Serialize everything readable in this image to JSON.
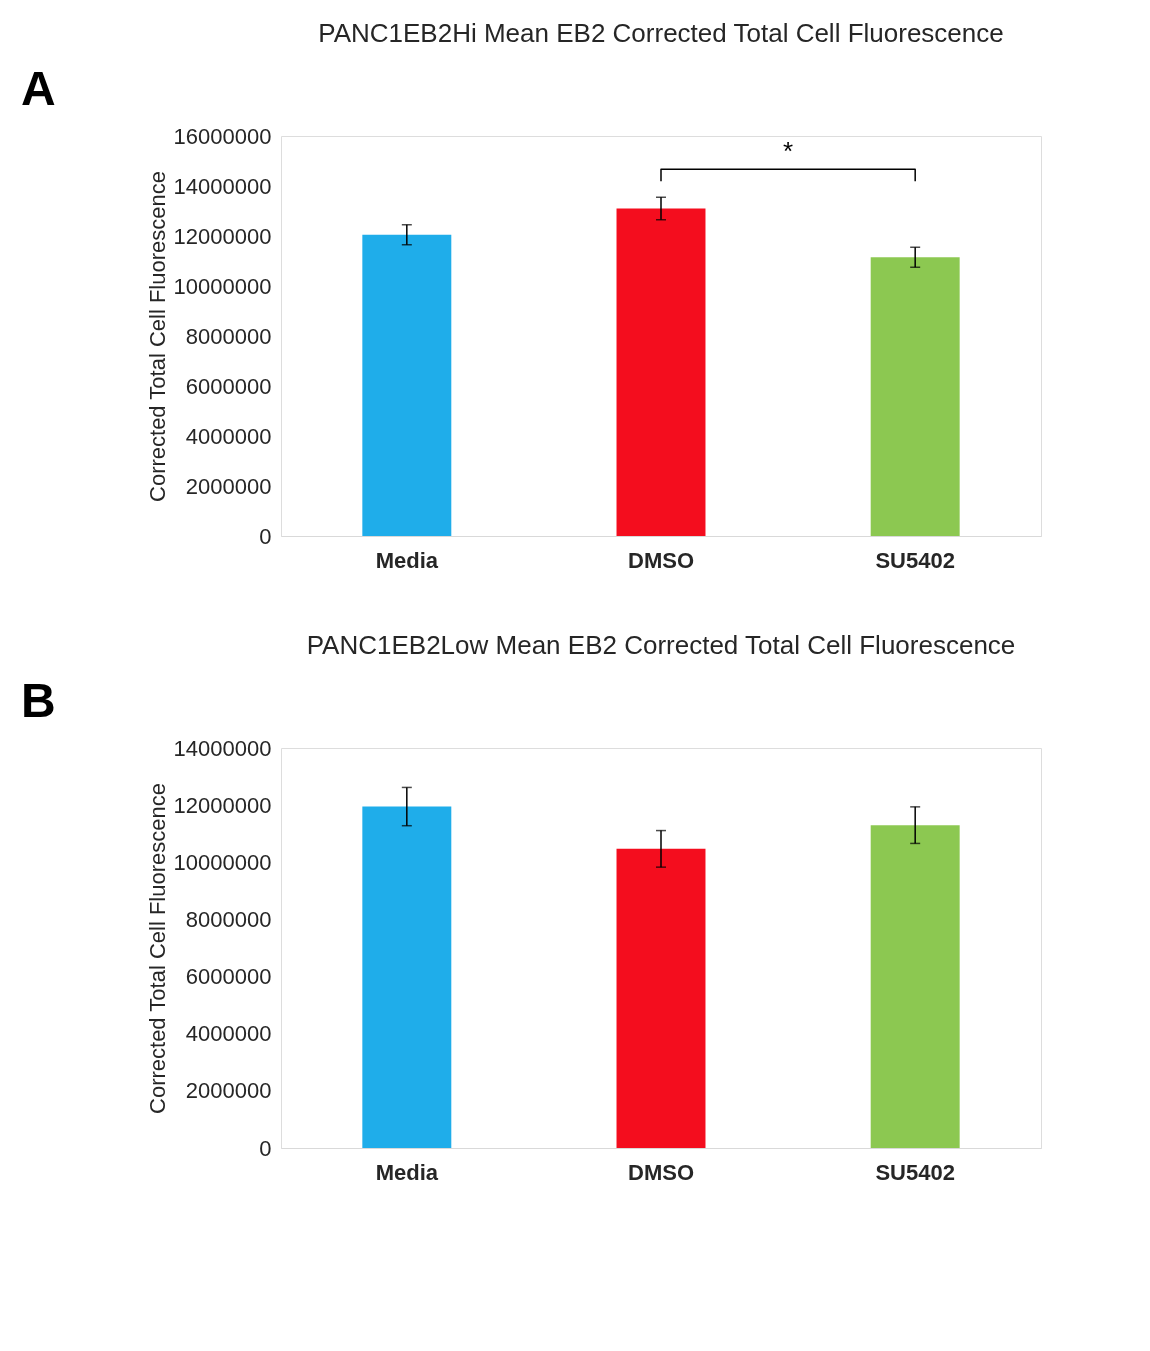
{
  "chart_data": [
    {
      "type": "bar",
      "title": "PANC1EB2Hi Mean EB2 Corrected Total Cell Fluorescence",
      "ylabel": "Corrected Total Cell Fluorescence",
      "categories": [
        "Media",
        "DMSO",
        "SU5402"
      ],
      "values": [
        12050000,
        13100000,
        11150000
      ],
      "colors": [
        "#1fadea",
        "#f40d1e",
        "#8cc851"
      ],
      "errors": [
        400000,
        450000,
        400000
      ],
      "ylim": [
        0,
        16000000
      ],
      "yticks": [
        0,
        2000000,
        4000000,
        6000000,
        8000000,
        10000000,
        12000000,
        14000000,
        16000000
      ],
      "grid": false,
      "annotations": [
        "A",
        "*"
      ]
    },
    {
      "type": "bar",
      "title": "PANC1EB2Low Mean EB2 Corrected Total Cell Fluorescence",
      "ylabel": "Corrected Total Cell Fluorescence",
      "categories": [
        "Media",
        "DMSO",
        "SU5402"
      ],
      "values": [
        11950000,
        10470000,
        11300000
      ],
      "colors": [
        "#1fadea",
        "#f40d1e",
        "#8cc851"
      ],
      "errors": [
        670000,
        640000,
        640000
      ],
      "ylim": [
        0,
        14000000
      ],
      "yticks": [
        0,
        2000000,
        4000000,
        6000000,
        8000000,
        10000000,
        12000000,
        14000000
      ],
      "grid": false,
      "annotations": [
        "B"
      ]
    }
  ]
}
